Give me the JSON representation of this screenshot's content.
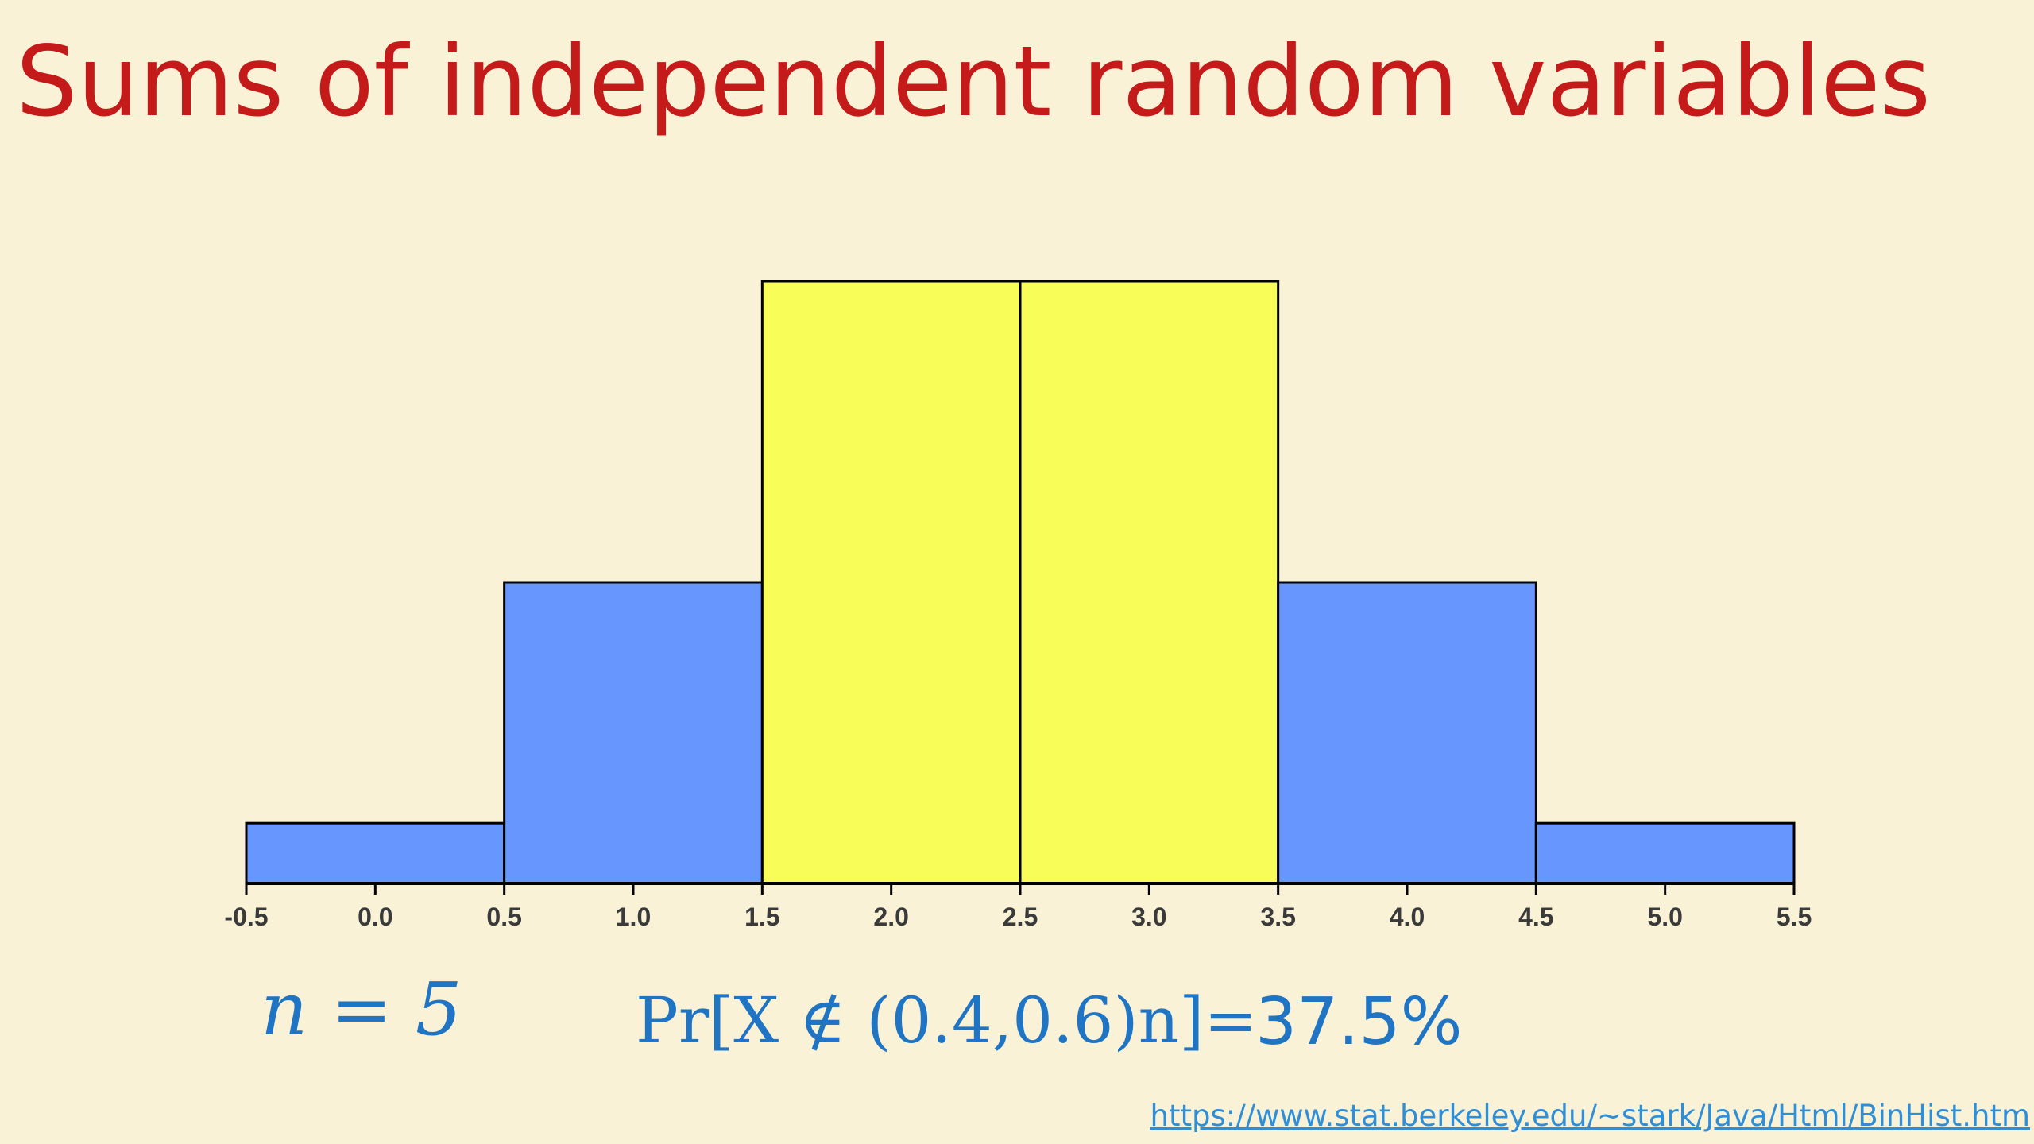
{
  "title": "Sums of independent random variables",
  "chart_data": {
    "type": "histogram",
    "bins": [
      -0.5,
      0.5,
      1.5,
      2.5,
      3.5,
      4.5,
      5.5
    ],
    "values": [
      0.03125,
      0.15625,
      0.3125,
      0.3125,
      0.15625,
      0.03125
    ],
    "colors": [
      "#6797fe",
      "#6797fe",
      "#f8fd58",
      "#f8fd58",
      "#6797fe",
      "#6797fe"
    ],
    "xlim": [
      -0.5,
      5.5
    ],
    "xticks": [
      -0.5,
      {
        "value": 0,
        "label": "0.0"
      },
      0.5,
      {
        "value": 1,
        "label": "1.0"
      },
      1.5,
      {
        "value": 2,
        "label": "2.0"
      },
      2.5,
      {
        "value": 3,
        "label": "3.0"
      },
      3.5,
      {
        "value": 4,
        "label": "4.0"
      },
      4.5,
      {
        "value": 5,
        "label": "5.0"
      },
      5.5
    ]
  },
  "n_label": "n = 5",
  "probability_label": "Pr[X ∉ (0.4,0.6)n]=",
  "probability_value": "37.5%",
  "link": "https://www.stat.berkeley.edu/~stark/Java/Html/BinHist.htm"
}
